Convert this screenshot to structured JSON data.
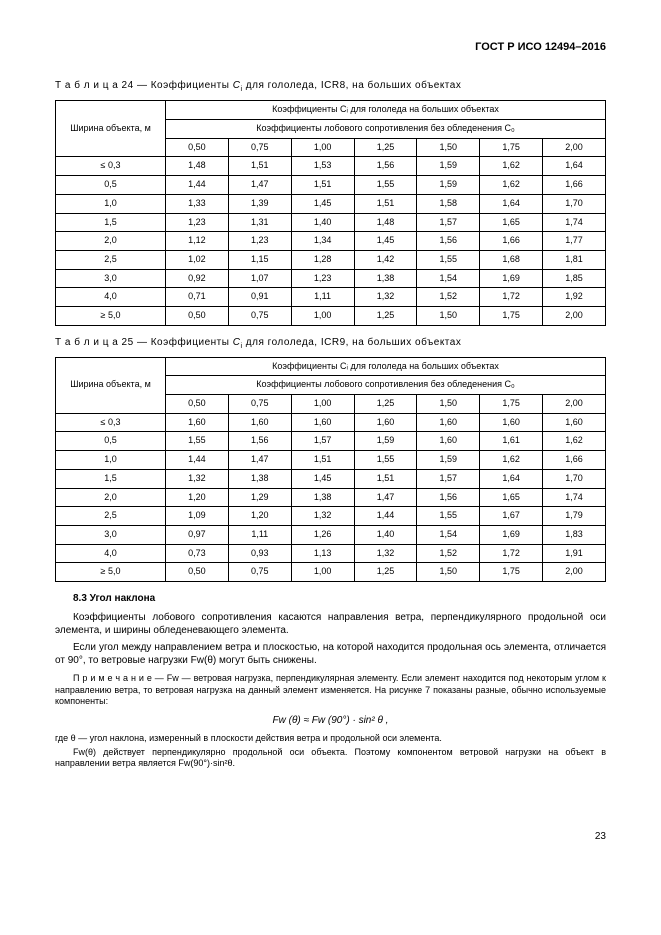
{
  "docCode": "ГОСТ Р ИСО 12494–2016",
  "table24": {
    "caption_prefix": "Т а б л и ц а 24 — Коэффициенты ",
    "caption_mid": " для гололеда, ICR8, на больших объектах",
    "rowHeader": "Ширина объекта,\nм",
    "headTop": "Коэффициенты Cᵢ для гололеда на больших объектах",
    "headSub": "Коэффициенты лобового сопротивления без обледенения C₀",
    "cols": [
      "0,50",
      "0,75",
      "1,00",
      "1,25",
      "1,50",
      "1,75",
      "2,00"
    ],
    "rows": [
      {
        "w": "≤ 0,3",
        "v": [
          "1,48",
          "1,51",
          "1,53",
          "1,56",
          "1,59",
          "1,62",
          "1,64"
        ]
      },
      {
        "w": "0,5",
        "v": [
          "1,44",
          "1,47",
          "1,51",
          "1,55",
          "1,59",
          "1,62",
          "1,66"
        ]
      },
      {
        "w": "1,0",
        "v": [
          "1,33",
          "1,39",
          "1,45",
          "1,51",
          "1,58",
          "1,64",
          "1,70"
        ]
      },
      {
        "w": "1,5",
        "v": [
          "1,23",
          "1,31",
          "1,40",
          "1,48",
          "1,57",
          "1,65",
          "1,74"
        ]
      },
      {
        "w": "2,0",
        "v": [
          "1,12",
          "1,23",
          "1,34",
          "1,45",
          "1,56",
          "1,66",
          "1,77"
        ]
      },
      {
        "w": "2,5",
        "v": [
          "1,02",
          "1,15",
          "1,28",
          "1,42",
          "1,55",
          "1,68",
          "1,81"
        ]
      },
      {
        "w": "3,0",
        "v": [
          "0,92",
          "1,07",
          "1,23",
          "1,38",
          "1,54",
          "1,69",
          "1,85"
        ]
      },
      {
        "w": "4,0",
        "v": [
          "0,71",
          "0,91",
          "1,11",
          "1,32",
          "1,52",
          "1,72",
          "1,92"
        ]
      },
      {
        "w": "≥ 5,0",
        "v": [
          "0,50",
          "0,75",
          "1,00",
          "1,25",
          "1,50",
          "1,75",
          "2,00"
        ]
      }
    ]
  },
  "table25": {
    "caption_prefix": "Т а б л и ц а 25 — Коэффициенты ",
    "caption_mid": " для гололеда, ICR9, на больших объектах",
    "rowHeader": "Ширина объекта,\nм",
    "headTop": "Коэффициенты Cᵢ для гололеда на больших объектах",
    "headSub": "Коэффициенты лобового сопротивления без обледенения C₀",
    "cols": [
      "0,50",
      "0,75",
      "1,00",
      "1,25",
      "1,50",
      "1,75",
      "2,00"
    ],
    "rows": [
      {
        "w": "≤ 0,3",
        "v": [
          "1,60",
          "1,60",
          "1,60",
          "1,60",
          "1,60",
          "1,60",
          "1,60"
        ]
      },
      {
        "w": "0,5",
        "v": [
          "1,55",
          "1,56",
          "1,57",
          "1,59",
          "1,60",
          "1,61",
          "1,62"
        ]
      },
      {
        "w": "1,0",
        "v": [
          "1,44",
          "1,47",
          "1,51",
          "1,55",
          "1,59",
          "1,62",
          "1,66"
        ]
      },
      {
        "w": "1,5",
        "v": [
          "1,32",
          "1,38",
          "1,45",
          "1,51",
          "1,57",
          "1,64",
          "1,70"
        ]
      },
      {
        "w": "2,0",
        "v": [
          "1,20",
          "1,29",
          "1,38",
          "1,47",
          "1,56",
          "1,65",
          "1,74"
        ]
      },
      {
        "w": "2,5",
        "v": [
          "1,09",
          "1,20",
          "1,32",
          "1,44",
          "1,55",
          "1,67",
          "1,79"
        ]
      },
      {
        "w": "3,0",
        "v": [
          "0,97",
          "1,11",
          "1,26",
          "1,40",
          "1,54",
          "1,69",
          "1,83"
        ]
      },
      {
        "w": "4,0",
        "v": [
          "0,73",
          "0,93",
          "1,13",
          "1,32",
          "1,52",
          "1,72",
          "1,91"
        ]
      },
      {
        "w": "≥ 5,0",
        "v": [
          "0,50",
          "0,75",
          "1,00",
          "1,25",
          "1,50",
          "1,75",
          "2,00"
        ]
      }
    ]
  },
  "section": {
    "heading": "8.3 Угол наклона",
    "p1": "Коэффициенты лобового сопротивления касаются направления ветра, перпендикулярного продольной оси элемента, и ширины обледеневающего элемента.",
    "p2": "Если угол между направлением ветра и плоскостью, на которой находится продольная ось элемента, отличается от 90°, то ветровые нагрузки Fᴡ(θ) могут быть снижены.",
    "note": "П р и м е ч а н и е — Fᴡ — ветровая нагрузка, перпендикулярная элементу. Если элемент находится под некоторым углом к направлению ветра, то ветровая нагрузка на данный элемент изменяется. На рисунке 7 показаны разные, обычно используемые компоненты:",
    "formula": "Fᴡ (θ) ≈ Fᴡ (90°) · sin² θ ,",
    "where": "где θ — угол наклона, измеренный в плоскости действия ветра и продольной оси элемента.",
    "where2": "Fᴡ(θ) действует перпендикулярно продольной оси объекта. Поэтому компонентом ветровой нагрузки на объект в направлении ветра является Fᴡ(90°)·sin²θ."
  },
  "pageNum": "23"
}
